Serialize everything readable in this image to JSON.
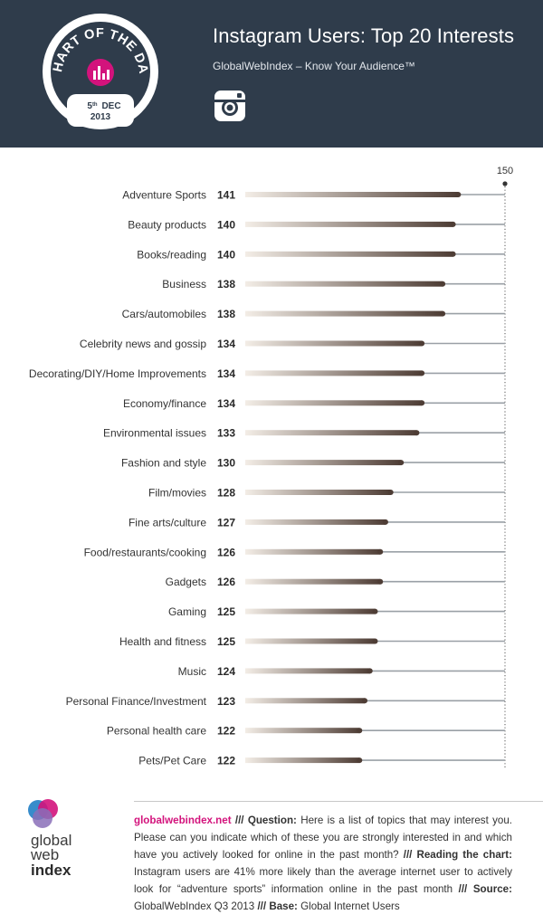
{
  "header": {
    "title": "Instagram Users: Top 20 Interests",
    "subtitle": "GlobalWebIndex – Know Your Audience™",
    "badge": {
      "text": "CHART OF THE DAY",
      "date_day": "5",
      "date_suffix": "th",
      "date_month": "DEC",
      "date_year": "2013"
    },
    "icon": "instagram-icon"
  },
  "chart_data": {
    "type": "bar",
    "title": "Instagram Users: Top 20 Interests",
    "xmax_label": "150",
    "xlim": [
      100,
      150
    ],
    "categories": [
      "Adventure Sports",
      "Beauty products",
      "Books/reading",
      "Business",
      "Cars/automobiles",
      "Celebrity news and gossip",
      "Decorating/DIY/Home Improvements",
      "Economy/finance",
      "Environmental issues",
      "Fashion and style",
      "Film/movies",
      "Fine arts/culture",
      "Food/restaurants/cooking",
      "Gadgets",
      "Gaming",
      "Health and fitness",
      "Music",
      "Personal Finance/Investment",
      "Personal health care",
      "Pets/Pet Care"
    ],
    "values": [
      141,
      140,
      140,
      138,
      138,
      134,
      134,
      134,
      133,
      130,
      128,
      127,
      126,
      126,
      125,
      125,
      124,
      123,
      122,
      122
    ],
    "colors": {
      "bar_start": "#f3ede6",
      "bar_end": "#4e3d35",
      "track": "#9aa0a6",
      "label": "#333333"
    }
  },
  "footer": {
    "logo": {
      "line1": "global",
      "line2": "web",
      "line3": "index"
    },
    "site": "globalwebindex.net",
    "sep": " /// ",
    "question_label": "Question:",
    "question_text": " Here is a list of topics that may interest you. Please can you indicate which of these you are strongly interested in and which have you actively looked for online in the past month? ",
    "reading_label": "Reading the chart:",
    "reading_text": " Instagram users are 41% more likely than the average internet user to actively look for “adventure sports” information online in the past month ",
    "source_label": "Source:",
    "source_text": " GlobalWebIndex Q3 2013 ",
    "base_label": "Base:",
    "base_text": " Global Internet Users"
  }
}
